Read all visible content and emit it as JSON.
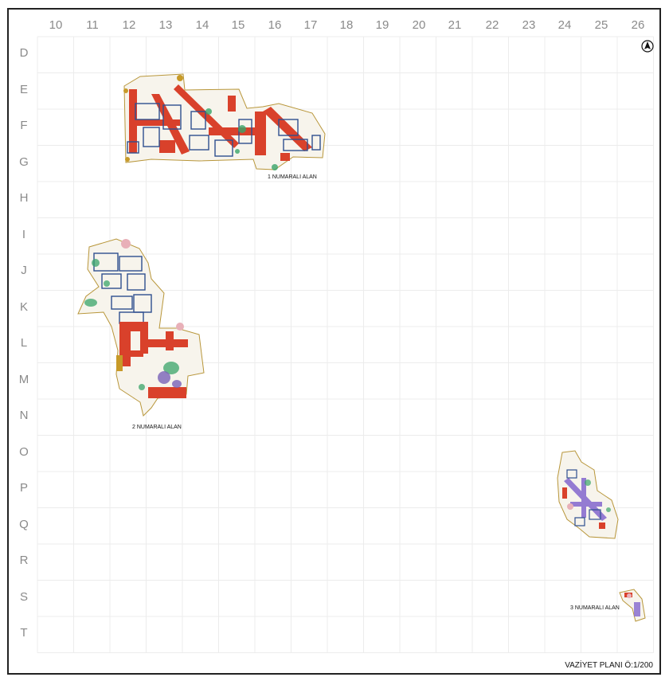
{
  "grid": {
    "columns": [
      "10",
      "11",
      "12",
      "13",
      "14",
      "15",
      "16",
      "17",
      "18",
      "19",
      "20",
      "21",
      "22",
      "23",
      "24",
      "25",
      "26"
    ],
    "rows": [
      "D",
      "E",
      "F",
      "G",
      "H",
      "I",
      "J",
      "K",
      "L",
      "M",
      "N",
      "O",
      "P",
      "Q",
      "R",
      "S",
      "T"
    ]
  },
  "areas": {
    "area1": {
      "label": "1 NUMARALI ALAN"
    },
    "area2": {
      "label": "2 NUMARALI ALAN"
    },
    "area3": {
      "label": "3 NUMARALI ALAN"
    }
  },
  "plan": {
    "scale_label": "VAZİYET PLANI Ö:1/200"
  },
  "icons": {
    "north": "north-arrow-icon"
  },
  "colors": {
    "wall_red": "#d9412b",
    "structure_blue": "#2f4f8f",
    "boundary": "#b8963a",
    "green": "#3aa56a",
    "purple": "#7a62b8",
    "grid_line": "#ececec"
  }
}
